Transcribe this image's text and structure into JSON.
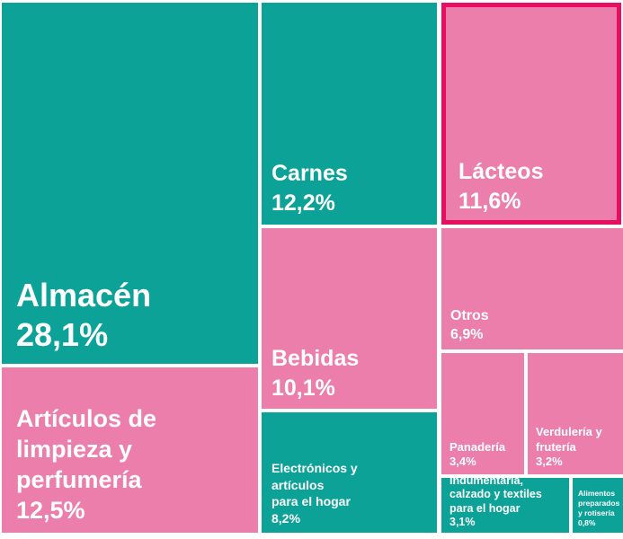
{
  "page": {
    "background_color": "#ffffff",
    "text_color": "#ffffff"
  },
  "chart_data": {
    "type": "treemap",
    "unit": "%",
    "decimal_style": "comma",
    "legend_position": "none",
    "colors": {
      "teal": "#0da298",
      "pink": "#ec7eac",
      "highlight_border": "#e80e62",
      "label_text": "#ffffff"
    },
    "items": [
      {
        "label": "Almacén",
        "value": 28.1,
        "value_label": "28,1%",
        "color": "#0da298",
        "color_name": "teal",
        "highlighted": false
      },
      {
        "label": "Artículos de\nlimpieza y\nperfumería",
        "value": 12.5,
        "value_label": "12,5%",
        "color": "#ec7eac",
        "color_name": "pink",
        "highlighted": false
      },
      {
        "label": "Carnes",
        "value": 12.2,
        "value_label": "12,2%",
        "color": "#0da298",
        "color_name": "teal",
        "highlighted": false
      },
      {
        "label": "Lácteos",
        "value": 11.6,
        "value_label": "11,6%",
        "color": "#ec7eac",
        "color_name": "pink",
        "highlighted": true
      },
      {
        "label": "Bebidas",
        "value": 10.1,
        "value_label": "10,1%",
        "color": "#ec7eac",
        "color_name": "pink",
        "highlighted": false
      },
      {
        "label": "Electrónicos y\nartículos\npara el hogar",
        "value": 8.2,
        "value_label": "8,2%",
        "color": "#0da298",
        "color_name": "teal",
        "highlighted": false
      },
      {
        "label": "Otros",
        "value": 6.9,
        "value_label": "6,9%",
        "color": "#ec7eac",
        "color_name": "pink",
        "highlighted": false
      },
      {
        "label": "Panadería",
        "value": 3.4,
        "value_label": "3,4%",
        "color": "#ec7eac",
        "color_name": "pink",
        "highlighted": false
      },
      {
        "label": "Verdulería y\nfrutería",
        "value": 3.2,
        "value_label": "3,2%",
        "color": "#ec7eac",
        "color_name": "pink",
        "highlighted": false
      },
      {
        "label": "Indumentaria,\ncalzado y textiles\npara el hogar",
        "value": 3.1,
        "value_label": "3,1%",
        "color": "#0da298",
        "color_name": "teal",
        "highlighted": false
      },
      {
        "label": "Alimentos\npreparados\ny rotisería",
        "value": 0.8,
        "value_label": "0,8%",
        "color": "#0da298",
        "color_name": "teal",
        "highlighted": false
      }
    ]
  }
}
